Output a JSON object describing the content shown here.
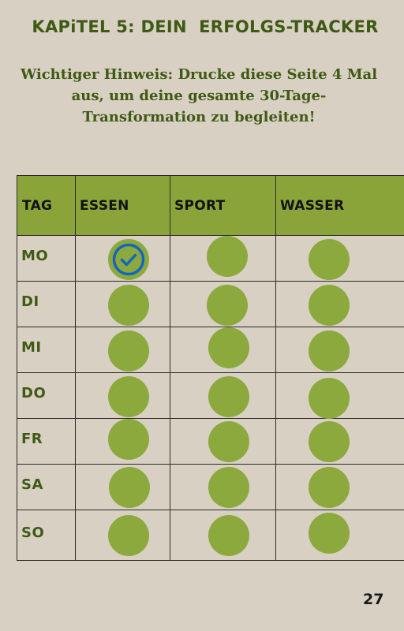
{
  "title": "KAPiTEL 5: DEIN  ERFOLGS-TRACKER",
  "notice": "Wichtiger Hinweis: Drucke diese Seite 4 Mal aus, um deine gesamte 30-Tage-Transformation zu begleiten!",
  "table": {
    "headers": [
      "TAG",
      "ESSEN",
      "SPORT",
      "WASSER"
    ],
    "rows": [
      {
        "day": "MO",
        "essen": true,
        "sport": false,
        "wasser": false
      },
      {
        "day": "DI",
        "essen": false,
        "sport": false,
        "wasser": false
      },
      {
        "day": "MI",
        "essen": false,
        "sport": false,
        "wasser": false
      },
      {
        "day": "DO",
        "essen": false,
        "sport": false,
        "wasser": false
      },
      {
        "day": "FR",
        "essen": false,
        "sport": false,
        "wasser": false
      },
      {
        "day": "SA",
        "essen": false,
        "sport": false,
        "wasser": false
      },
      {
        "day": "SO",
        "essen": false,
        "sport": false,
        "wasser": false
      }
    ]
  },
  "colors": {
    "background": "#d8d0c3",
    "accent_green": "#8ba43a",
    "text_green": "#3f5a14",
    "check_blue": "#1565c0"
  },
  "icons": {
    "checked": "check-circle-icon",
    "unchecked": "circle-icon"
  },
  "page_number": "27"
}
